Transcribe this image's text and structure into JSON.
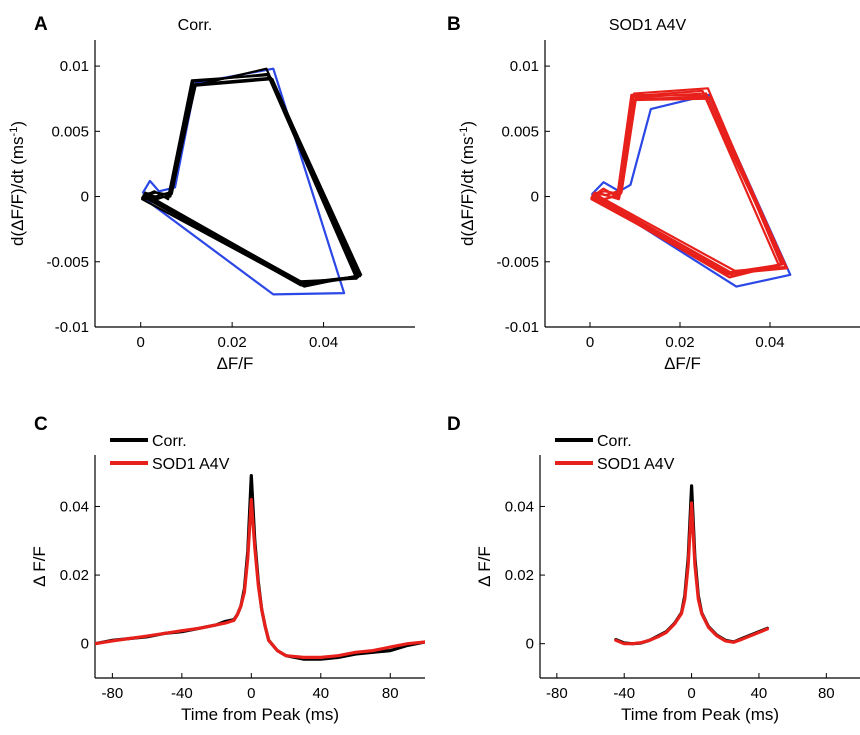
{
  "chart_data": [
    {
      "panel": "A",
      "type": "line",
      "title": "Corr.",
      "xlabel": "ΔF/F",
      "ylabel": "d(ΔF/F)/dt (ms",
      "ylabel_sup": "-1",
      "ylabel_close": ")",
      "xlim": [
        -0.01,
        0.06
      ],
      "ylim": [
        -0.01,
        0.012
      ],
      "xticks": [
        0,
        0.02,
        0.04
      ],
      "xticklabels": [
        "0",
        "0.02",
        "0.04"
      ],
      "yticks": [
        -0.01,
        -0.005,
        0,
        0.005,
        0.01
      ],
      "yticklabels": [
        "-0.01",
        "-0.005",
        "0",
        "0.005",
        "0.01"
      ],
      "grid": false,
      "series": [
        {
          "color": "#2b48e6",
          "width": 2.2,
          "x": [
            0.0005,
            0.002,
            0.004,
            0.0075,
            0.012,
            0.029,
            0.0445,
            0.029,
            0.0005
          ],
          "y": [
            0.0003,
            0.0012,
            0.0004,
            0.0007,
            0.0087,
            0.0098,
            -0.0074,
            -0.0075,
            -0.0001
          ]
        },
        {
          "color": "#000000",
          "width": 2.2,
          "x": [
            0.0005,
            0.003,
            0.006,
            0.0115,
            0.0275,
            0.0475,
            0.035,
            0.0005
          ],
          "y": [
            0.0,
            0.0004,
            -0.0002,
            0.0085,
            0.0098,
            -0.0062,
            -0.0068,
            0.0
          ]
        },
        {
          "color": "#000000",
          "width": 2.2,
          "x": [
            0.0008,
            0.0035,
            0.0065,
            0.0115,
            0.028,
            0.048,
            0.0355,
            0.0008
          ],
          "y": [
            0.0002,
            0.0003,
            0.0001,
            0.0088,
            0.0094,
            -0.0061,
            -0.0066,
            0.0001
          ]
        },
        {
          "color": "#000000",
          "width": 2.2,
          "x": [
            0.0003,
            0.0028,
            0.0068,
            0.0118,
            0.0285,
            0.0482,
            0.0358,
            0.0003
          ],
          "y": [
            -0.0001,
            -0.0003,
            0.0002,
            0.0086,
            0.0091,
            -0.006,
            -0.0069,
            -0.0002
          ]
        },
        {
          "color": "#000000",
          "width": 2.2,
          "x": [
            0.001,
            0.0032,
            0.0062,
            0.0112,
            0.0278,
            0.0472,
            0.0348,
            0.001
          ],
          "y": [
            0.0003,
            0.0,
            0.0003,
            0.0089,
            0.0093,
            -0.0063,
            -0.0065,
            0.0002
          ]
        },
        {
          "color": "#000000",
          "width": 2.2,
          "x": [
            0.0006,
            0.003,
            0.0065,
            0.012,
            0.0288,
            0.0478,
            0.0352,
            0.0006
          ],
          "y": [
            0.0001,
            -0.0001,
            0.0,
            0.0085,
            0.009,
            -0.0061,
            -0.0067,
            0.0
          ]
        }
      ]
    },
    {
      "panel": "B",
      "type": "line",
      "title": "SOD1 A4V",
      "xlabel": "ΔF/F",
      "ylabel": "d(ΔF/F)/dt (ms",
      "ylabel_sup": "-1",
      "ylabel_close": ")",
      "xlim": [
        -0.01,
        0.06
      ],
      "ylim": [
        -0.01,
        0.012
      ],
      "xticks": [
        0,
        0.02,
        0.04
      ],
      "xticklabels": [
        "0",
        "0.02",
        "0.04"
      ],
      "yticks": [
        -0.01,
        -0.005,
        0,
        0.005,
        0.01
      ],
      "yticklabels": [
        "-0.01",
        "-0.005",
        "0",
        "0.005",
        "0.01"
      ],
      "grid": false,
      "series": [
        {
          "color": "#2b48e6",
          "width": 2.2,
          "x": [
            0.0005,
            0.003,
            0.0065,
            0.009,
            0.0135,
            0.0265,
            0.0445,
            0.0325,
            0.0005
          ],
          "y": [
            0.0002,
            0.0011,
            0.0004,
            0.0009,
            0.0067,
            0.0078,
            -0.006,
            -0.0069,
            0.0001
          ]
        },
        {
          "color": "#e8201b",
          "width": 2.2,
          "x": [
            0.0005,
            0.003,
            0.0065,
            0.0095,
            0.025,
            0.042,
            0.0305,
            0.0005
          ],
          "y": [
            0.0,
            0.0006,
            -0.0001,
            0.0077,
            0.0081,
            -0.0053,
            -0.006,
            0.0
          ]
        },
        {
          "color": "#e8201b",
          "width": 2.2,
          "x": [
            0.0008,
            0.0032,
            0.0068,
            0.0098,
            0.0262,
            0.0428,
            0.0312,
            0.0008
          ],
          "y": [
            0.0002,
            0.0004,
            0.0002,
            0.0079,
            0.0083,
            -0.0052,
            -0.0058,
            0.0001
          ]
        },
        {
          "color": "#e8201b",
          "width": 2.2,
          "x": [
            0.0003,
            0.0028,
            0.007,
            0.0102,
            0.0268,
            0.0432,
            0.0318,
            0.0003
          ],
          "y": [
            -0.0001,
            -0.0003,
            0.0003,
            0.0075,
            0.0076,
            -0.0051,
            -0.0061,
            -0.0002
          ]
        },
        {
          "color": "#e8201b",
          "width": 2.2,
          "x": [
            0.001,
            0.0034,
            0.0062,
            0.0092,
            0.0255,
            0.0435,
            0.0322,
            0.001
          ],
          "y": [
            0.0003,
            0.0001,
            0.0004,
            0.0078,
            0.0077,
            -0.0054,
            -0.0057,
            0.0002
          ]
        },
        {
          "color": "#e8201b",
          "width": 2.2,
          "x": [
            0.0006,
            0.003,
            0.0066,
            0.0096,
            0.0258,
            0.0438,
            0.0315,
            0.0006
          ],
          "y": [
            0.0001,
            -0.0002,
            0.0001,
            0.0076,
            0.0079,
            -0.0055,
            -0.0059,
            0.0
          ]
        },
        {
          "color": "#e8201b",
          "width": 2.2,
          "x": [
            0.0004,
            0.0026,
            0.0064,
            0.01,
            0.027,
            0.0425,
            0.031,
            0.0004
          ],
          "y": [
            -0.0002,
            0.0002,
            -0.0002,
            0.0074,
            0.0075,
            -0.0052,
            -0.0062,
            -0.0001
          ]
        }
      ]
    },
    {
      "panel": "C",
      "type": "line",
      "title": "",
      "xlabel": "Time from Peak (ms)",
      "ylabel": "Δ F/F",
      "xlim": [
        -90,
        100
      ],
      "ylim": [
        -0.01,
        0.055
      ],
      "xticks": [
        -80,
        -40,
        0,
        40,
        80
      ],
      "xticklabels": [
        "-80",
        "-40",
        "0",
        "40",
        "80"
      ],
      "yticks": [
        0,
        0.02,
        0.04
      ],
      "yticklabels": [
        "0",
        "0.02",
        "0.04"
      ],
      "grid": false,
      "legend": {
        "position": "top-left",
        "entries": [
          {
            "label": "Corr.",
            "color": "#000000"
          },
          {
            "label": "SOD1 A4V",
            "color": "#e8201b"
          }
        ]
      },
      "series": [
        {
          "name": "Corr.",
          "color": "#000000",
          "width": 3.2,
          "x": [
            -90,
            -80,
            -70,
            -60,
            -50,
            -40,
            -30,
            -20,
            -15,
            -10,
            -8,
            -6,
            -4,
            -2,
            0,
            2,
            4,
            6,
            8,
            10,
            15,
            20,
            30,
            40,
            50,
            60,
            70,
            80,
            90,
            100
          ],
          "y": [
            0.0,
            0.001,
            0.0015,
            0.002,
            0.003,
            0.0035,
            0.0045,
            0.0055,
            0.0065,
            0.007,
            0.0085,
            0.011,
            0.016,
            0.027,
            0.049,
            0.03,
            0.018,
            0.01,
            0.005,
            0.001,
            -0.002,
            -0.0035,
            -0.0045,
            -0.0045,
            -0.004,
            -0.003,
            -0.0025,
            -0.002,
            -0.0005,
            0.0005
          ]
        },
        {
          "name": "SOD1 A4V",
          "color": "#e8201b",
          "width": 3.2,
          "x": [
            -90,
            -80,
            -70,
            -60,
            -50,
            -40,
            -30,
            -20,
            -15,
            -10,
            -8,
            -6,
            -4,
            -2,
            0,
            2,
            4,
            6,
            8,
            10,
            15,
            20,
            30,
            40,
            50,
            60,
            70,
            80,
            90,
            100
          ],
          "y": [
            0.0,
            0.0008,
            0.0015,
            0.0022,
            0.003,
            0.0038,
            0.0045,
            0.0055,
            0.006,
            0.0068,
            0.0085,
            0.011,
            0.015,
            0.025,
            0.042,
            0.028,
            0.017,
            0.01,
            0.005,
            0.001,
            -0.002,
            -0.0035,
            -0.004,
            -0.004,
            -0.0035,
            -0.0025,
            -0.002,
            -0.001,
            0.0,
            0.0005
          ]
        }
      ]
    },
    {
      "panel": "D",
      "type": "line",
      "title": "",
      "xlabel": "Time from Peak (ms)",
      "ylabel": "Δ F/F",
      "xlim": [
        -90,
        100
      ],
      "ylim": [
        -0.01,
        0.055
      ],
      "xticks": [
        -80,
        -40,
        0,
        40,
        80
      ],
      "xticklabels": [
        "-80",
        "-40",
        "0",
        "40",
        "80"
      ],
      "yticks": [
        0,
        0.02,
        0.04
      ],
      "yticklabels": [
        "0",
        "0.02",
        "0.04"
      ],
      "grid": false,
      "legend": {
        "position": "top-left",
        "entries": [
          {
            "label": "Corr.",
            "color": "#000000"
          },
          {
            "label": "SOD1 A4V",
            "color": "#e8201b"
          }
        ]
      },
      "series": [
        {
          "name": "Corr.",
          "color": "#000000",
          "width": 3.2,
          "x": [
            -45,
            -40,
            -35,
            -30,
            -25,
            -20,
            -15,
            -10,
            -6,
            -4,
            -2,
            0,
            2,
            4,
            6,
            10,
            15,
            20,
            25,
            30,
            35,
            40,
            45
          ],
          "y": [
            0.0012,
            0.0002,
            0.0,
            0.0002,
            0.001,
            0.0022,
            0.0035,
            0.006,
            0.009,
            0.014,
            0.025,
            0.046,
            0.025,
            0.014,
            0.009,
            0.005,
            0.0025,
            0.001,
            0.0005,
            0.0015,
            0.0025,
            0.0035,
            0.0045
          ]
        },
        {
          "name": "SOD1 A4V",
          "color": "#e8201b",
          "width": 3.2,
          "x": [
            -45,
            -40,
            -35,
            -30,
            -25,
            -20,
            -15,
            -10,
            -6,
            -4,
            -2,
            0,
            2,
            4,
            6,
            10,
            15,
            20,
            25,
            30,
            35,
            40,
            45
          ],
          "y": [
            0.001,
            0.0,
            0.0,
            0.0003,
            0.001,
            0.002,
            0.0033,
            0.0058,
            0.0088,
            0.013,
            0.023,
            0.041,
            0.023,
            0.013,
            0.0088,
            0.0048,
            0.0023,
            0.0008,
            0.0004,
            0.0013,
            0.0023,
            0.0033,
            0.0043
          ]
        }
      ]
    }
  ]
}
